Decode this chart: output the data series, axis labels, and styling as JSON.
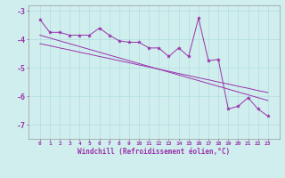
{
  "xlabel": "Windchill (Refroidissement éolien,°C)",
  "x_values": [
    0,
    1,
    2,
    3,
    4,
    5,
    6,
    7,
    8,
    9,
    10,
    11,
    12,
    13,
    14,
    15,
    16,
    17,
    18,
    19,
    20,
    21,
    22,
    23
  ],
  "line1_y": [
    -3.3,
    -3.75,
    -3.75,
    -3.85,
    -3.85,
    -3.85,
    -3.6,
    -3.85,
    -4.05,
    -4.1,
    -4.1,
    -4.3,
    -4.3,
    -4.6,
    -4.3,
    -4.6,
    -3.25,
    -4.75,
    -4.7,
    -6.45,
    -6.35,
    -6.05,
    -6.45,
    -6.7
  ],
  "line2_y": [
    -4.15,
    -4.22,
    -4.3,
    -4.37,
    -4.45,
    -4.52,
    -4.6,
    -4.67,
    -4.75,
    -4.82,
    -4.9,
    -4.97,
    -5.05,
    -5.12,
    -5.2,
    -5.27,
    -5.35,
    -5.42,
    -5.5,
    -5.57,
    -5.65,
    -5.72,
    -5.8,
    -5.87
  ],
  "line3_y": [
    -3.85,
    -3.95,
    -4.05,
    -4.15,
    -4.25,
    -4.35,
    -4.45,
    -4.55,
    -4.65,
    -4.75,
    -4.85,
    -4.95,
    -5.05,
    -5.15,
    -5.25,
    -5.35,
    -5.45,
    -5.55,
    -5.65,
    -5.75,
    -5.85,
    -5.95,
    -6.05,
    -6.15
  ],
  "line_color": "#9933aa",
  "bg_color": "#d0eeee",
  "grid_color": "#b0dddd",
  "ylim": [
    -7.5,
    -2.8
  ],
  "yticks": [
    -7,
    -6,
    -5,
    -4,
    -3
  ],
  "xticks": [
    0,
    1,
    2,
    3,
    4,
    5,
    6,
    7,
    8,
    9,
    10,
    11,
    12,
    13,
    14,
    15,
    16,
    17,
    18,
    19,
    20,
    21,
    22,
    23
  ],
  "xlabel_fontsize": 5.5,
  "ytick_fontsize": 6,
  "xtick_fontsize": 4.5
}
